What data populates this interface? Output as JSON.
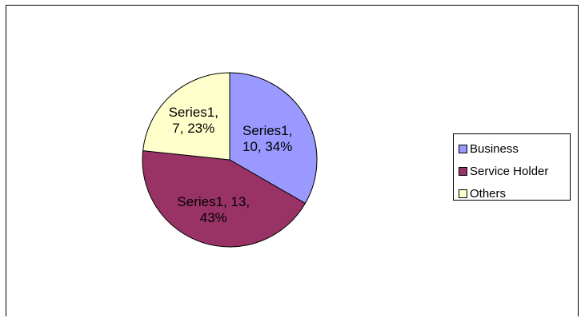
{
  "chart_data": {
    "type": "pie",
    "categories": [
      "Business",
      "Service Holder",
      "Others"
    ],
    "series": [
      {
        "name": "Series1",
        "values": [
          10,
          13,
          7
        ],
        "percents": [
          "34%",
          "43%",
          "23%"
        ]
      }
    ],
    "slice_labels": [
      [
        "Series1,",
        "10, 34%"
      ],
      [
        "Series1, 13,",
        "43%"
      ],
      [
        "Series1,",
        "7, 23%"
      ]
    ],
    "legend": {
      "position": "right",
      "items": [
        {
          "label": "Business",
          "color": "#9999FF"
        },
        {
          "label": "Service Holder",
          "color": "#993366"
        },
        {
          "label": "Others",
          "color": "#FFFFCC"
        }
      ]
    },
    "title": "",
    "start_angle_deg": 0,
    "direction": "clockwise"
  }
}
